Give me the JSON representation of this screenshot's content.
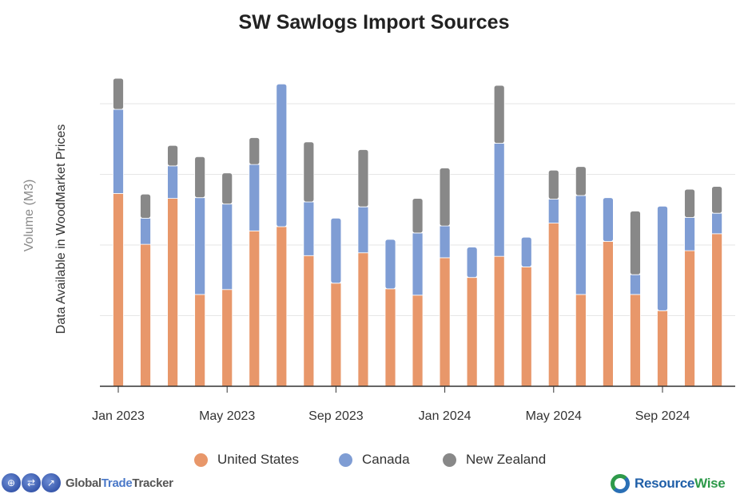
{
  "chart_data": {
    "type": "bar",
    "stacked": true,
    "title": "SW Sawlogs Import Sources",
    "xlabel": "",
    "ylabel": "Volume (M3)",
    "ylabel_note": "Data Available in WoodMarket Prices",
    "y_units_note": "relative units (y tick labels not shown)",
    "ylim": [
      0,
      4.5
    ],
    "y_gridlines": [
      1,
      2,
      3,
      4
    ],
    "grid": true,
    "legend_position": "bottom",
    "categories": [
      "Jan 2023",
      "Feb 2023",
      "Mar 2023",
      "Apr 2023",
      "May 2023",
      "Jun 2023",
      "Jul 2023",
      "Aug 2023",
      "Sep 2023",
      "Oct 2023",
      "Nov 2023",
      "Dec 2023",
      "Jan 2024",
      "Feb 2024",
      "Mar 2024",
      "Apr 2024",
      "May 2024",
      "Jun 2024",
      "Jul 2024",
      "Aug 2024",
      "Sep 2024",
      "Oct 2024",
      "Nov 2024"
    ],
    "x_tick_labels": [
      "Jan 2023",
      "May 2023",
      "Sep 2023",
      "Jan 2024",
      "May 2024",
      "Sep 2024"
    ],
    "x_tick_indices": [
      0,
      4,
      8,
      12,
      16,
      20
    ],
    "series": [
      {
        "name": "United States",
        "color": "#e8976a",
        "values": [
          2.73,
          2.01,
          2.66,
          1.3,
          1.37,
          2.2,
          2.26,
          1.85,
          1.46,
          1.89,
          1.38,
          1.29,
          1.82,
          1.54,
          1.84,
          1.69,
          2.31,
          1.3,
          2.05,
          1.3,
          1.07,
          1.92,
          2.16
        ]
      },
      {
        "name": "Canada",
        "color": "#7f9dd4",
        "values": [
          1.19,
          0.37,
          0.46,
          1.37,
          1.21,
          0.94,
          2.02,
          0.76,
          0.92,
          0.65,
          0.7,
          0.88,
          0.45,
          0.43,
          1.6,
          0.42,
          0.34,
          1.4,
          0.62,
          0.28,
          1.48,
          0.47,
          0.29
        ]
      },
      {
        "name": "New Zealand",
        "color": "#888888",
        "values": [
          0.44,
          0.34,
          0.29,
          0.58,
          0.44,
          0.38,
          0,
          0.85,
          0,
          0.81,
          0,
          0.49,
          0.82,
          0,
          0.82,
          0,
          0.41,
          0.41,
          0,
          0.9,
          0,
          0.4,
          0.38
        ]
      }
    ]
  },
  "logos": {
    "left": {
      "part1": "Global",
      "part2": "Trade",
      "part3": "Tracker"
    },
    "right": {
      "part1": "Resource",
      "part2": "Wise"
    }
  }
}
